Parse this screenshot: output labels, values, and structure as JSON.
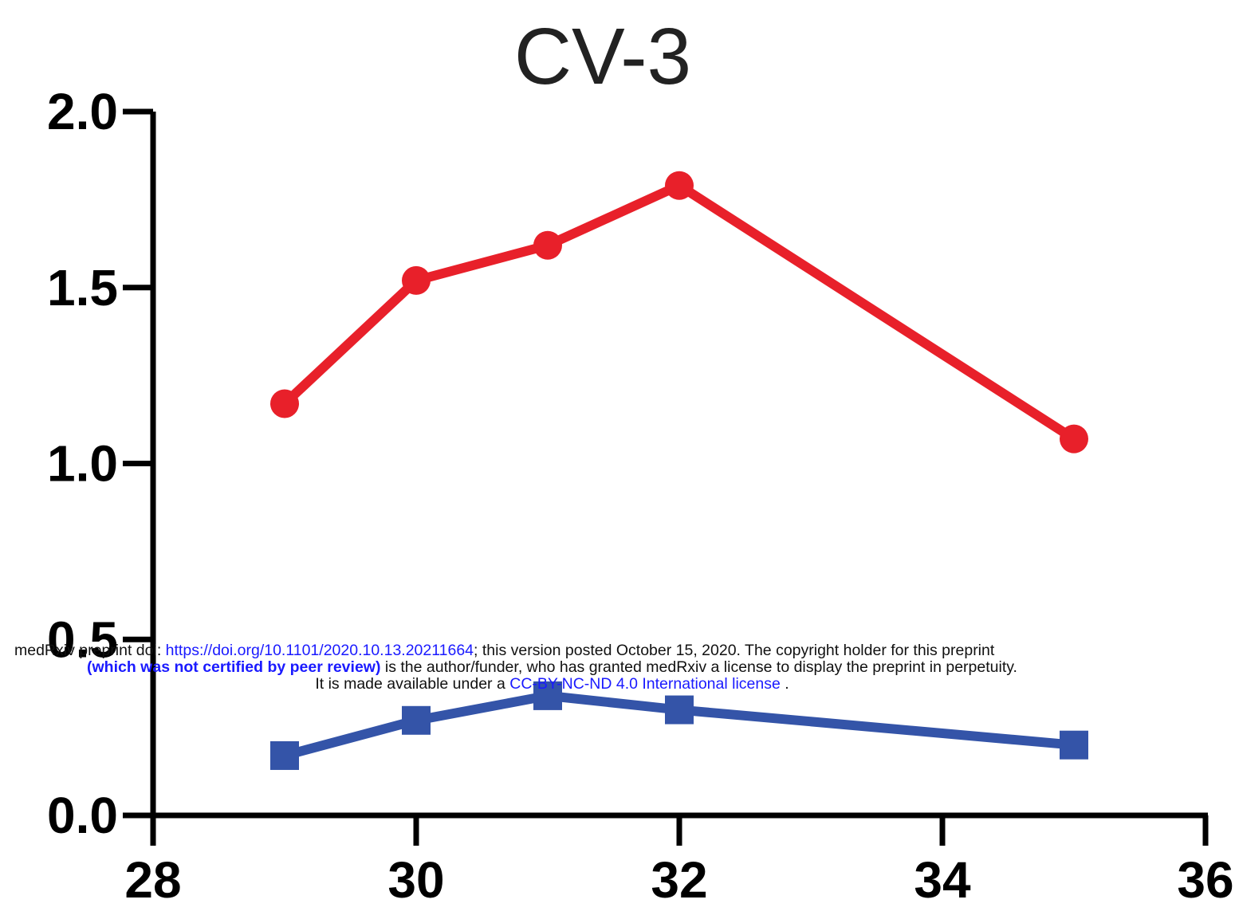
{
  "chart_data": {
    "type": "line",
    "title": "CV-3",
    "xlabel": "",
    "ylabel": "",
    "xlim": [
      28,
      36
    ],
    "ylim": [
      0,
      2.0
    ],
    "xticks": [
      "28",
      "30",
      "32",
      "34",
      "36"
    ],
    "yticks": [
      "0.0",
      "0.5",
      "1.0",
      "1.5",
      "2.0"
    ],
    "grid": false,
    "series": [
      {
        "marker": "circle",
        "color": "#e8202a",
        "x": [
          29,
          30,
          31,
          32,
          35
        ],
        "y": [
          1.17,
          1.52,
          1.62,
          1.79,
          1.07
        ]
      },
      {
        "marker": "square",
        "color": "#3454a8",
        "x": [
          29,
          30,
          31,
          32,
          35
        ],
        "y": [
          0.17,
          0.27,
          0.34,
          0.3,
          0.2
        ]
      }
    ]
  },
  "watermark": {
    "line1_prefix": "medRxiv preprint doi: ",
    "doi_link": "https://doi.org/10.1101/2020.10.13.20211664",
    "line1_suffix": "; this version posted October 15, 2020. The copyright holder for this preprint",
    "line2_bold": "(which was not certified by peer review)",
    "line2_rest": " is the author/funder, who has granted medRxiv a license to display the preprint in perpetuity.",
    "line3_prefix": "It is made available under a ",
    "license_link": "CC-BY-NC-ND 4.0 International license",
    "line3_suffix": " ."
  }
}
